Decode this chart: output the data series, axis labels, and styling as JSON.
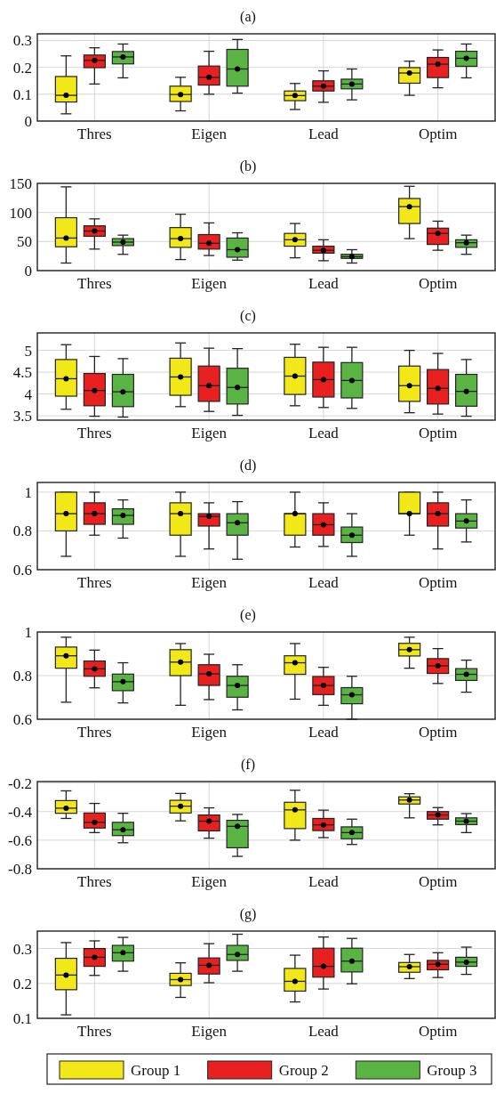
{
  "chart_data": [
    {
      "type": "box",
      "title": "(a)",
      "categories": [
        "Thres",
        "Eigen",
        "Lead",
        "Optim"
      ],
      "ylim": [
        0,
        0.325
      ],
      "yticks": [
        0,
        0.1,
        0.2,
        0.3
      ],
      "grid": true,
      "legend": false,
      "series": [
        {
          "color": "#f2e818",
          "boxes": [
            {
              "low": 0.027,
              "q1": 0.071,
              "median": 0.096,
              "q3": 0.166,
              "high": 0.243,
              "mean": 0.096
            },
            {
              "low": 0.038,
              "q1": 0.073,
              "median": 0.099,
              "q3": 0.13,
              "high": 0.163,
              "mean": 0.099
            },
            {
              "low": 0.043,
              "q1": 0.076,
              "median": 0.095,
              "q3": 0.112,
              "high": 0.14,
              "mean": 0.095
            },
            {
              "low": 0.096,
              "q1": 0.141,
              "median": 0.179,
              "q3": 0.199,
              "high": 0.223,
              "mean": 0.179
            }
          ]
        },
        {
          "color": "#e82020",
          "boxes": [
            {
              "low": 0.138,
              "q1": 0.199,
              "median": 0.226,
              "q3": 0.246,
              "high": 0.273,
              "mean": 0.226
            },
            {
              "low": 0.1,
              "q1": 0.134,
              "median": 0.163,
              "q3": 0.205,
              "high": 0.26,
              "mean": 0.163
            },
            {
              "low": 0.07,
              "q1": 0.112,
              "median": 0.13,
              "q3": 0.15,
              "high": 0.187,
              "mean": 0.13
            },
            {
              "low": 0.124,
              "q1": 0.162,
              "median": 0.212,
              "q3": 0.237,
              "high": 0.265,
              "mean": 0.212
            }
          ]
        },
        {
          "color": "#5ab443",
          "boxes": [
            {
              "low": 0.161,
              "q1": 0.213,
              "median": 0.239,
              "q3": 0.259,
              "high": 0.287,
              "mean": 0.239
            },
            {
              "low": 0.104,
              "q1": 0.13,
              "median": 0.194,
              "q3": 0.267,
              "high": 0.304,
              "mean": 0.194
            },
            {
              "low": 0.079,
              "q1": 0.12,
              "median": 0.138,
              "q3": 0.156,
              "high": 0.194,
              "mean": 0.138
            },
            {
              "low": 0.161,
              "q1": 0.204,
              "median": 0.234,
              "q3": 0.26,
              "high": 0.287,
              "mean": 0.234
            }
          ]
        }
      ]
    },
    {
      "type": "box",
      "title": "(b)",
      "categories": [
        "Thres",
        "Eigen",
        "Lead",
        "Optim"
      ],
      "ylim": [
        0,
        150
      ],
      "yticks": [
        0,
        50,
        100,
        150
      ],
      "grid": true,
      "legend": false,
      "series": [
        {
          "color": "#f2e818",
          "boxes": [
            {
              "low": 13,
              "q1": 41,
              "median": 56,
              "q3": 91,
              "high": 144,
              "mean": 56
            },
            {
              "low": 19,
              "q1": 40,
              "median": 55,
              "q3": 74,
              "high": 97,
              "mean": 55
            },
            {
              "low": 22,
              "q1": 42,
              "median": 53,
              "q3": 64,
              "high": 81,
              "mean": 53
            },
            {
              "low": 55,
              "q1": 81,
              "median": 110,
              "q3": 124,
              "high": 145,
              "mean": 110
            }
          ]
        },
        {
          "color": "#e82020",
          "boxes": [
            {
              "low": 37,
              "q1": 59,
              "median": 68,
              "q3": 77,
              "high": 89,
              "mean": 68
            },
            {
              "low": 26,
              "q1": 37,
              "median": 47,
              "q3": 62,
              "high": 82,
              "mean": 47
            },
            {
              "low": 17,
              "q1": 30,
              "median": 35,
              "q3": 42,
              "high": 53,
              "mean": 35
            },
            {
              "low": 35,
              "q1": 45,
              "median": 64,
              "q3": 73,
              "high": 85,
              "mean": 64
            }
          ]
        },
        {
          "color": "#5ab443",
          "boxes": [
            {
              "low": 28,
              "q1": 43,
              "median": 49,
              "q3": 55,
              "high": 61,
              "mean": 49
            },
            {
              "low": 18,
              "q1": 23,
              "median": 36,
              "q3": 56,
              "high": 65,
              "mean": 36
            },
            {
              "low": 13,
              "q1": 21,
              "median": 24,
              "q3": 28,
              "high": 36,
              "mean": 24
            },
            {
              "low": 28,
              "q1": 40,
              "median": 48,
              "q3": 53,
              "high": 61,
              "mean": 48
            }
          ]
        }
      ]
    },
    {
      "type": "box",
      "title": "(c)",
      "categories": [
        "Thres",
        "Eigen",
        "Lead",
        "Optim"
      ],
      "ylim": [
        3.4,
        5.4
      ],
      "yticks": [
        3.5,
        4,
        4.5,
        5
      ],
      "grid": true,
      "legend": false,
      "series": [
        {
          "color": "#f2e818",
          "boxes": [
            {
              "low": 3.65,
              "q1": 3.95,
              "median": 4.35,
              "q3": 4.79,
              "high": 5.13,
              "mean": 4.35
            },
            {
              "low": 3.71,
              "q1": 3.97,
              "median": 4.39,
              "q3": 4.82,
              "high": 5.17,
              "mean": 4.39
            },
            {
              "low": 3.73,
              "q1": 3.99,
              "median": 4.41,
              "q3": 4.84,
              "high": 5.14,
              "mean": 4.41
            },
            {
              "low": 3.57,
              "q1": 3.83,
              "median": 4.19,
              "q3": 4.64,
              "high": 5.0,
              "mean": 4.19
            }
          ]
        },
        {
          "color": "#e82020",
          "boxes": [
            {
              "low": 3.49,
              "q1": 3.73,
              "median": 4.08,
              "q3": 4.47,
              "high": 4.86,
              "mean": 4.08
            },
            {
              "low": 3.6,
              "q1": 3.83,
              "median": 4.19,
              "q3": 4.64,
              "high": 5.05,
              "mean": 4.19
            },
            {
              "low": 3.69,
              "q1": 3.93,
              "median": 4.33,
              "q3": 4.73,
              "high": 5.07,
              "mean": 4.33
            },
            {
              "low": 3.54,
              "q1": 3.77,
              "median": 4.13,
              "q3": 4.56,
              "high": 4.93,
              "mean": 4.13
            }
          ]
        },
        {
          "color": "#5ab443",
          "boxes": [
            {
              "low": 3.47,
              "q1": 3.71,
              "median": 4.05,
              "q3": 4.45,
              "high": 4.81,
              "mean": 4.05
            },
            {
              "low": 3.51,
              "q1": 3.77,
              "median": 4.15,
              "q3": 4.59,
              "high": 5.04,
              "mean": 4.15
            },
            {
              "low": 3.67,
              "q1": 3.91,
              "median": 4.31,
              "q3": 4.72,
              "high": 5.07,
              "mean": 4.31
            },
            {
              "low": 3.49,
              "q1": 3.72,
              "median": 4.06,
              "q3": 4.45,
              "high": 4.79,
              "mean": 4.06
            }
          ]
        }
      ]
    },
    {
      "type": "box",
      "title": "(d)",
      "categories": [
        "Thres",
        "Eigen",
        "Lead",
        "Optim"
      ],
      "ylim": [
        0.6,
        1.05
      ],
      "yticks": [
        0.6,
        0.8,
        1
      ],
      "grid": true,
      "legend": false,
      "series": [
        {
          "color": "#f2e818",
          "boxes": [
            {
              "low": 0.669,
              "q1": 0.8,
              "median": 0.889,
              "q3": 1.0,
              "high": 1.0,
              "mean": 0.889
            },
            {
              "low": 0.669,
              "q1": 0.778,
              "median": 0.889,
              "q3": 0.945,
              "high": 1.0,
              "mean": 0.889
            },
            {
              "low": 0.717,
              "q1": 0.778,
              "median": 0.889,
              "q3": 0.889,
              "high": 1.0,
              "mean": 0.889
            },
            {
              "low": 0.778,
              "q1": 0.889,
              "median": 0.889,
              "q3": 1.0,
              "high": 1.0,
              "mean": 0.889
            }
          ]
        },
        {
          "color": "#e82020",
          "boxes": [
            {
              "low": 0.778,
              "q1": 0.834,
              "median": 0.889,
              "q3": 0.945,
              "high": 1.0,
              "mean": 0.889
            },
            {
              "low": 0.707,
              "q1": 0.825,
              "median": 0.875,
              "q3": 0.889,
              "high": 0.945,
              "mean": 0.875
            },
            {
              "low": 0.72,
              "q1": 0.778,
              "median": 0.832,
              "q3": 0.889,
              "high": 0.945,
              "mean": 0.832
            },
            {
              "low": 0.707,
              "q1": 0.825,
              "median": 0.889,
              "q3": 0.945,
              "high": 1.0,
              "mean": 0.889
            }
          ]
        },
        {
          "color": "#5ab443",
          "boxes": [
            {
              "low": 0.763,
              "q1": 0.834,
              "median": 0.88,
              "q3": 0.914,
              "high": 0.96,
              "mean": 0.88
            },
            {
              "low": 0.654,
              "q1": 0.778,
              "median": 0.842,
              "q3": 0.889,
              "high": 0.951,
              "mean": 0.842
            },
            {
              "low": 0.669,
              "q1": 0.74,
              "median": 0.778,
              "q3": 0.82,
              "high": 0.889,
              "mean": 0.778
            },
            {
              "low": 0.743,
              "q1": 0.815,
              "median": 0.851,
              "q3": 0.889,
              "high": 0.96,
              "mean": 0.851
            }
          ]
        }
      ]
    },
    {
      "type": "box",
      "title": "(e)",
      "categories": [
        "Thres",
        "Eigen",
        "Lead",
        "Optim"
      ],
      "ylim": [
        0.6,
        1
      ],
      "yticks": [
        0.6,
        0.8,
        1
      ],
      "grid": true,
      "legend": false,
      "series": [
        {
          "color": "#f2e818",
          "boxes": [
            {
              "low": 0.678,
              "q1": 0.834,
              "median": 0.891,
              "q3": 0.931,
              "high": 0.976,
              "mean": 0.891
            },
            {
              "low": 0.664,
              "q1": 0.8,
              "median": 0.862,
              "q3": 0.919,
              "high": 0.947,
              "mean": 0.862
            },
            {
              "low": 0.692,
              "q1": 0.806,
              "median": 0.859,
              "q3": 0.891,
              "high": 0.947,
              "mean": 0.859
            },
            {
              "low": 0.834,
              "q1": 0.89,
              "median": 0.919,
              "q3": 0.948,
              "high": 0.976,
              "mean": 0.919
            }
          ]
        },
        {
          "color": "#e82020",
          "boxes": [
            {
              "low": 0.744,
              "q1": 0.797,
              "median": 0.831,
              "q3": 0.867,
              "high": 0.917,
              "mean": 0.831
            },
            {
              "low": 0.69,
              "q1": 0.755,
              "median": 0.808,
              "q3": 0.85,
              "high": 0.898,
              "mean": 0.808
            },
            {
              "low": 0.664,
              "q1": 0.713,
              "median": 0.755,
              "q3": 0.796,
              "high": 0.838,
              "mean": 0.755
            },
            {
              "low": 0.764,
              "q1": 0.81,
              "median": 0.845,
              "q3": 0.878,
              "high": 0.924,
              "mean": 0.845
            }
          ]
        },
        {
          "color": "#5ab443",
          "boxes": [
            {
              "low": 0.675,
              "q1": 0.731,
              "median": 0.772,
              "q3": 0.807,
              "high": 0.859,
              "mean": 0.772
            },
            {
              "low": 0.643,
              "q1": 0.701,
              "median": 0.755,
              "q3": 0.797,
              "high": 0.85,
              "mean": 0.755
            },
            {
              "low": 0.6,
              "q1": 0.671,
              "median": 0.712,
              "q3": 0.745,
              "high": 0.797,
              "mean": 0.712
            },
            {
              "low": 0.724,
              "q1": 0.778,
              "median": 0.806,
              "q3": 0.832,
              "high": 0.871,
              "mean": 0.806
            }
          ]
        }
      ]
    },
    {
      "type": "box",
      "title": "(f)",
      "categories": [
        "Thres",
        "Eigen",
        "Lead",
        "Optim"
      ],
      "ylim": [
        -0.8,
        -0.19
      ],
      "yticks": [
        -0.8,
        -0.6,
        -0.4,
        -0.2
      ],
      "grid": true,
      "legend": false,
      "series": [
        {
          "color": "#f2e818",
          "boxes": [
            {
              "low": -0.448,
              "q1": -0.412,
              "median": -0.376,
              "q3": -0.323,
              "high": -0.255,
              "mean": -0.376
            },
            {
              "low": -0.465,
              "q1": -0.41,
              "median": -0.362,
              "q3": -0.321,
              "high": -0.273,
              "mean": -0.362
            },
            {
              "low": -0.6,
              "q1": -0.519,
              "median": -0.388,
              "q3": -0.335,
              "high": -0.251,
              "mean": -0.388
            },
            {
              "low": -0.444,
              "q1": -0.347,
              "median": -0.319,
              "q3": -0.297,
              "high": -0.275,
              "mean": -0.319
            }
          ]
        },
        {
          "color": "#e82020",
          "boxes": [
            {
              "low": -0.547,
              "q1": -0.515,
              "median": -0.475,
              "q3": -0.41,
              "high": -0.343,
              "mean": -0.475
            },
            {
              "low": -0.586,
              "q1": -0.535,
              "median": -0.467,
              "q3": -0.424,
              "high": -0.374,
              "mean": -0.467
            },
            {
              "low": -0.582,
              "q1": -0.533,
              "median": -0.493,
              "q3": -0.448,
              "high": -0.39,
              "mean": -0.493
            },
            {
              "low": -0.493,
              "q1": -0.453,
              "median": -0.424,
              "q3": -0.4,
              "high": -0.372,
              "mean": -0.424
            }
          ]
        },
        {
          "color": "#5ab443",
          "boxes": [
            {
              "low": -0.618,
              "q1": -0.568,
              "median": -0.527,
              "q3": -0.475,
              "high": -0.412,
              "mean": -0.527
            },
            {
              "low": -0.713,
              "q1": -0.653,
              "median": -0.503,
              "q3": -0.461,
              "high": -0.42,
              "mean": -0.503
            },
            {
              "low": -0.63,
              "q1": -0.59,
              "median": -0.547,
              "q3": -0.507,
              "high": -0.453,
              "mean": -0.547
            },
            {
              "low": -0.547,
              "q1": -0.491,
              "median": -0.467,
              "q3": -0.444,
              "high": -0.414,
              "mean": -0.467
            }
          ]
        }
      ]
    },
    {
      "type": "box",
      "title": "(g)",
      "categories": [
        "Thres",
        "Eigen",
        "Lead",
        "Optim"
      ],
      "ylim": [
        0.1,
        0.35
      ],
      "yticks": [
        0.1,
        0.2,
        0.3
      ],
      "grid": true,
      "legend": "bottom",
      "series": [
        {
          "name": "Group 1",
          "color": "#f2e818",
          "boxes": [
            {
              "low": 0.11,
              "q1": 0.182,
              "median": 0.224,
              "q3": 0.272,
              "high": 0.317,
              "mean": 0.224
            },
            {
              "low": 0.16,
              "q1": 0.194,
              "median": 0.211,
              "q3": 0.229,
              "high": 0.259,
              "mean": 0.211
            },
            {
              "low": 0.147,
              "q1": 0.178,
              "median": 0.206,
              "q3": 0.243,
              "high": 0.281,
              "mean": 0.206
            },
            {
              "low": 0.214,
              "q1": 0.232,
              "median": 0.248,
              "q3": 0.26,
              "high": 0.283,
              "mean": 0.248
            }
          ]
        },
        {
          "name": "Group 2",
          "color": "#e82020",
          "boxes": [
            {
              "low": 0.223,
              "q1": 0.249,
              "median": 0.275,
              "q3": 0.3,
              "high": 0.322,
              "mean": 0.275
            },
            {
              "low": 0.202,
              "q1": 0.227,
              "median": 0.252,
              "q3": 0.273,
              "high": 0.314,
              "mean": 0.252
            },
            {
              "low": 0.184,
              "q1": 0.218,
              "median": 0.249,
              "q3": 0.301,
              "high": 0.333,
              "mean": 0.249
            },
            {
              "low": 0.217,
              "q1": 0.239,
              "median": 0.255,
              "q3": 0.266,
              "high": 0.288,
              "mean": 0.255
            }
          ]
        },
        {
          "name": "Group 3",
          "color": "#5ab443",
          "boxes": [
            {
              "low": 0.235,
              "q1": 0.264,
              "median": 0.288,
              "q3": 0.309,
              "high": 0.332,
              "mean": 0.288
            },
            {
              "low": 0.235,
              "q1": 0.266,
              "median": 0.283,
              "q3": 0.309,
              "high": 0.341,
              "mean": 0.283
            },
            {
              "low": 0.199,
              "q1": 0.233,
              "median": 0.264,
              "q3": 0.301,
              "high": 0.329,
              "mean": 0.264
            },
            {
              "low": 0.226,
              "q1": 0.249,
              "median": 0.261,
              "q3": 0.275,
              "high": 0.304,
              "mean": 0.261
            }
          ]
        }
      ]
    }
  ]
}
